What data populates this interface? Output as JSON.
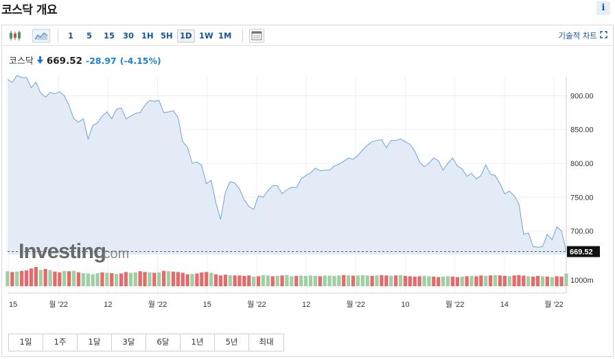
{
  "page": {
    "title": "코스닥 개요",
    "info_label": "i"
  },
  "toolbar": {
    "intervals": [
      "1",
      "5",
      "15",
      "30",
      "1H",
      "5H",
      "1D",
      "1W",
      "1M"
    ],
    "active_interval": "1D",
    "tech_chart_label": "기술적 차트"
  },
  "quote": {
    "name": "코스닥",
    "price": "669.52",
    "change": "-28.97",
    "change_pct": "(-4.15%)"
  },
  "colors": {
    "line": "#7aa8d6",
    "area": "#e3ecf6",
    "volume_up": "#9fd0a3",
    "volume_down": "#e36b6b",
    "accent": "#1256a0",
    "change": "#1a82d4"
  },
  "watermark": {
    "brand": "Investing",
    "suffix": ".com"
  },
  "range_buttons": [
    "1일",
    "1주",
    "1달",
    "3달",
    "6달",
    "1년",
    "5년",
    "최대"
  ],
  "chart_data": {
    "type": "area",
    "title": "",
    "current_price": 669.52,
    "current_price_label": "669.52",
    "y_ticks": [
      900,
      850,
      800,
      750,
      700
    ],
    "y_tick_labels": [
      "900.00",
      "850.00",
      "800.00",
      "750.00",
      "700.00"
    ],
    "ylim": [
      665,
      935
    ],
    "volume_tick_label": "1000m",
    "x_tick_labels": [
      "15",
      "월 '22",
      "12",
      "월 '22",
      "15",
      "월 '22",
      "12",
      "월 '22",
      "10",
      "월 '22",
      "14",
      "월 '22"
    ],
    "grid": true,
    "price": [
      924,
      920,
      930,
      927,
      927,
      912,
      920,
      904,
      898,
      905,
      903,
      906,
      900,
      885,
      866,
      861,
      866,
      836,
      856,
      860,
      870,
      876,
      866,
      880,
      882,
      866,
      870,
      874,
      875,
      886,
      893,
      892,
      893,
      875,
      876,
      878,
      868,
      832,
      824,
      800,
      802,
      797,
      770,
      775,
      742,
      717,
      757,
      773,
      771,
      762,
      746,
      736,
      732,
      752,
      750,
      760,
      767,
      767,
      755,
      761,
      765,
      764,
      777,
      782,
      786,
      793,
      789,
      790,
      790,
      796,
      799,
      803,
      808,
      806,
      812,
      820,
      827,
      832,
      834,
      835,
      823,
      834,
      834,
      836,
      832,
      828,
      818,
      802,
      795,
      800,
      808,
      804,
      790,
      800,
      808,
      796,
      792,
      781,
      785,
      777,
      782,
      798,
      784,
      782,
      770,
      755,
      759,
      752,
      740,
      695,
      697,
      677,
      676,
      677,
      695,
      687,
      706,
      700,
      670
    ],
    "volume": [
      0.78,
      0.74,
      0.76,
      0.8,
      0.82,
      0.92,
      1.0,
      0.85,
      0.9,
      0.84,
      0.76,
      0.72,
      0.8,
      0.78,
      0.8,
      0.72,
      0.68,
      0.66,
      0.62,
      0.68,
      0.72,
      0.7,
      0.68,
      0.64,
      0.66,
      0.74,
      0.7,
      0.72,
      0.78,
      0.74,
      0.72,
      0.7,
      0.72,
      0.8,
      0.78,
      0.76,
      0.74,
      0.7,
      0.62,
      0.64,
      0.66,
      0.72,
      0.74,
      0.7,
      0.62,
      0.56,
      0.6,
      0.58,
      0.56,
      0.56,
      0.54,
      0.56,
      0.5,
      0.52,
      0.58,
      0.56,
      0.52,
      0.54,
      0.56,
      0.58,
      0.52,
      0.54,
      0.55,
      0.54,
      0.56,
      0.54,
      0.52,
      0.56,
      0.55,
      0.54,
      0.56,
      0.58,
      0.56,
      0.55,
      0.56,
      0.58,
      0.56,
      0.54,
      0.56,
      0.58,
      0.56,
      0.54,
      0.56,
      0.58,
      0.54,
      0.52,
      0.5,
      0.52,
      0.54,
      0.52,
      0.5,
      0.48,
      0.5,
      0.52,
      0.5,
      0.48,
      0.5,
      0.52,
      0.54,
      0.52,
      0.56,
      0.54,
      0.56,
      0.58,
      0.56,
      0.54,
      0.52,
      0.56,
      0.58,
      0.55,
      0.52,
      0.5,
      0.54,
      0.52,
      0.5,
      0.48,
      0.52,
      0.5,
      0.66
    ],
    "volume_up": [
      1,
      0,
      1,
      0,
      0,
      0,
      0,
      1,
      0,
      1,
      0,
      0,
      1,
      0,
      1,
      0,
      1,
      1,
      1,
      1,
      0,
      1,
      0,
      1,
      0,
      0,
      1,
      1,
      0,
      0,
      1,
      0,
      1,
      0,
      1,
      0,
      0,
      0,
      0,
      1,
      0,
      0,
      0,
      1,
      0,
      0,
      0,
      1,
      0,
      0,
      0,
      0,
      1,
      0,
      1,
      1,
      0,
      1,
      0,
      1,
      1,
      0,
      1,
      1,
      1,
      1,
      0,
      1,
      1,
      1,
      1,
      0,
      1,
      0,
      1,
      1,
      1,
      0,
      1,
      0,
      0,
      1,
      0,
      1,
      0,
      0,
      0,
      0,
      1,
      1,
      0,
      0,
      1,
      1,
      0,
      0,
      1,
      0,
      1,
      0,
      0,
      1,
      0,
      1,
      0,
      0,
      1,
      0,
      0,
      0,
      1,
      0,
      0,
      1,
      0,
      1,
      0,
      0,
      1
    ]
  }
}
